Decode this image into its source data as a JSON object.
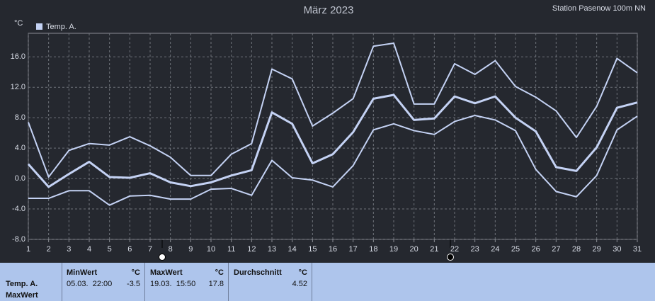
{
  "chart_data": {
    "type": "line",
    "title": "März 2023",
    "subtitle": "Station Pasenow 100m NN",
    "y_label": "°C",
    "x": [
      1,
      2,
      3,
      4,
      5,
      6,
      7,
      8,
      9,
      10,
      11,
      12,
      13,
      14,
      15,
      16,
      17,
      18,
      19,
      20,
      21,
      22,
      23,
      24,
      25,
      26,
      27,
      28,
      29,
      30,
      31
    ],
    "series": [
      {
        "name": "Temp. A.",
        "color": "#c4d2f4",
        "values": [
          1.9,
          -1.1,
          0.6,
          2.2,
          0.2,
          0.1,
          0.7,
          -0.5,
          -1.0,
          -0.5,
          0.4,
          1.1,
          8.7,
          7.2,
          2.0,
          3.2,
          6.1,
          10.5,
          11.0,
          7.7,
          7.9,
          10.8,
          9.9,
          10.8,
          8.0,
          6.2,
          1.5,
          1.0,
          4.1,
          9.3,
          10.0
        ]
      },
      {
        "color": "#c4d2f4",
        "values": [
          7.4,
          0.2,
          3.7,
          4.6,
          4.4,
          5.5,
          4.3,
          2.8,
          0.4,
          0.4,
          3.2,
          4.6,
          14.4,
          13.1,
          6.9,
          8.6,
          10.5,
          17.4,
          17.8,
          9.8,
          9.8,
          15.1,
          13.7,
          15.5,
          12.1,
          10.7,
          8.9,
          5.4,
          9.5,
          15.8,
          13.9
        ]
      },
      {
        "color": "#c4d2f4",
        "values": [
          -2.6,
          -2.6,
          -1.6,
          -1.6,
          -3.5,
          -2.3,
          -2.2,
          -2.7,
          -2.7,
          -1.4,
          -1.3,
          -2.2,
          2.4,
          0.1,
          -0.2,
          -1.1,
          1.7,
          6.4,
          7.2,
          6.3,
          5.8,
          7.5,
          8.3,
          7.7,
          6.3,
          1.2,
          -1.7,
          -2.4,
          0.4,
          6.4,
          8.2
        ]
      }
    ],
    "xlim": [
      1,
      31
    ],
    "xticks": [
      1,
      2,
      3,
      4,
      5,
      6,
      7,
      8,
      9,
      10,
      11,
      12,
      13,
      14,
      15,
      16,
      17,
      18,
      19,
      20,
      21,
      22,
      23,
      24,
      25,
      26,
      27,
      28,
      29,
      30,
      31
    ],
    "ylim": [
      -8,
      19.1
    ],
    "yticks": [
      {
        "value": -8,
        "label": "-8.0"
      },
      {
        "value": -4,
        "label": "-4.0"
      },
      {
        "value": 0,
        "label": "0.0"
      },
      {
        "value": 4,
        "label": "4.0"
      },
      {
        "value": 8,
        "label": "8.0"
      },
      {
        "value": 12,
        "label": "12.0"
      },
      {
        "value": 16,
        "label": "16.0"
      }
    ],
    "grid": true,
    "legend": "top-left"
  },
  "table": {
    "row_label": [
      "Temp. A.",
      "MaxWert"
    ],
    "columns": [
      {
        "header": "MinWert",
        "unit": "°C",
        "time": "05.03.  22:00",
        "value": "-3.5"
      },
      {
        "header": "MaxWert",
        "unit": "°C",
        "time": "19.03.  15:50",
        "value": "17.8"
      },
      {
        "header": "Durchschnitt",
        "unit": "°C",
        "value": "4.52"
      }
    ]
  }
}
